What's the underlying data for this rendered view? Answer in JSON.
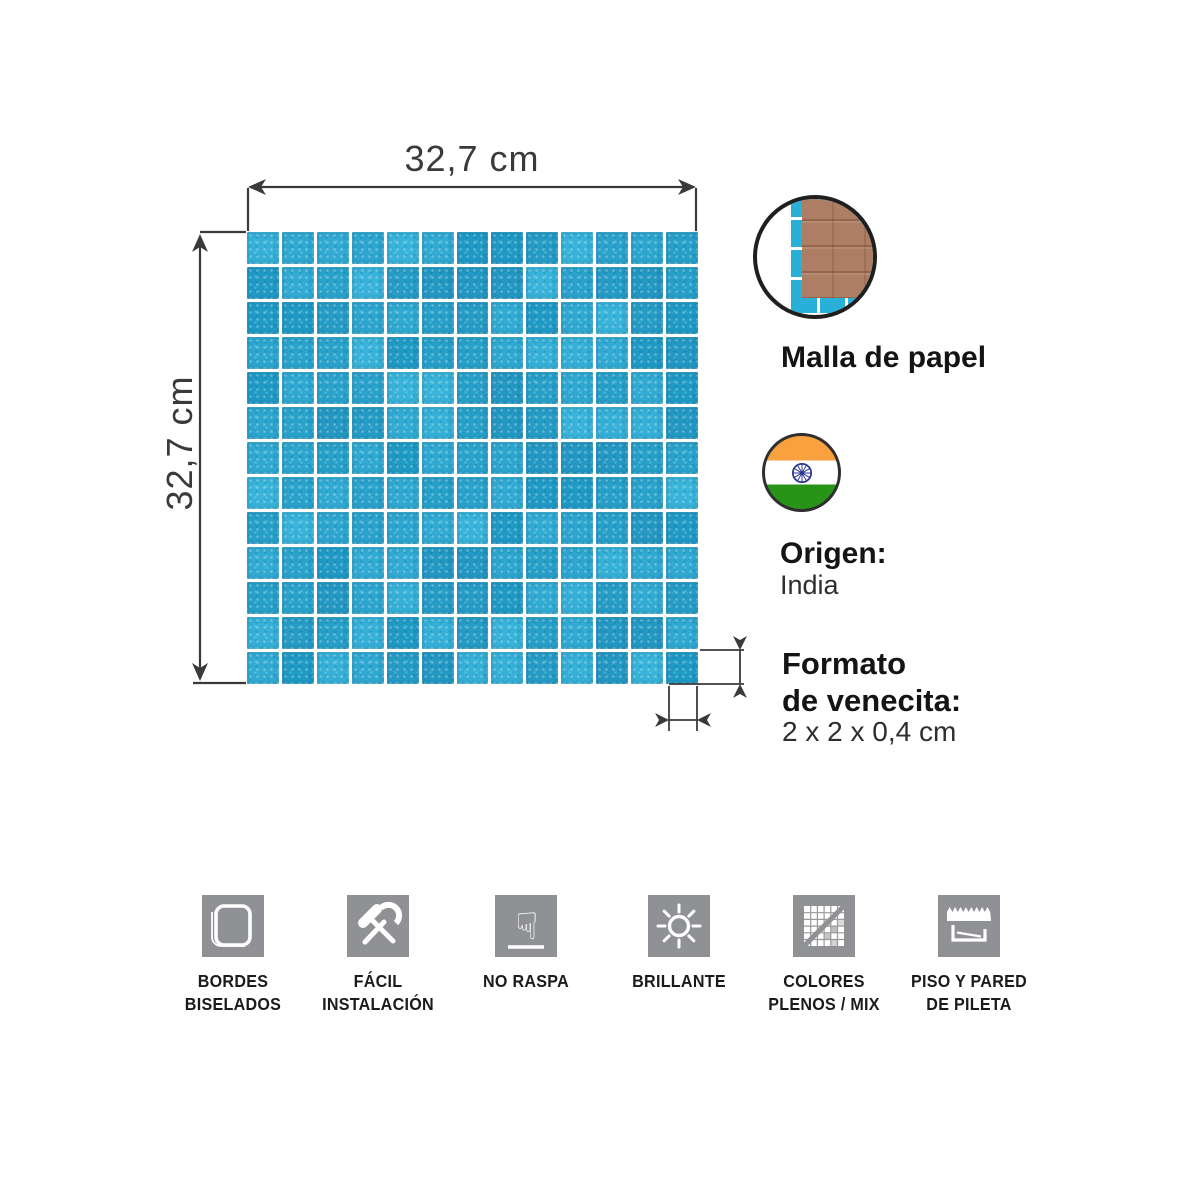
{
  "product_diagram": {
    "width_label": "32,7 cm",
    "height_label": "32,7 cm"
  },
  "callouts": {
    "mesh": {
      "label": "Malla de papel",
      "icon": "paper-mesh-photo"
    },
    "origin": {
      "title": "Origen:",
      "value": "India",
      "icon": "india-flag-icon"
    },
    "format": {
      "line1": "Formato",
      "line2": "de venecita:",
      "value": "2 x 2 x 0,4 cm"
    }
  },
  "mosaic": {
    "rows": 13,
    "cols": 13,
    "seed": 20,
    "grout_color": "#ffffff",
    "palette": [
      "#2fa9d1",
      "#27a0c9",
      "#35b0d7",
      "#2398c3",
      "#2ca6cf",
      "#31abd3",
      "#259cc6",
      "#38b3d9",
      "#2aa3cc",
      "#1f9ac5"
    ]
  },
  "features": [
    {
      "icon": "beveled-edges-icon",
      "lines": [
        "BORDES",
        "BISELADOS"
      ]
    },
    {
      "icon": "tools-icon",
      "lines": [
        "FÁCIL",
        "INSTALACIÓN"
      ]
    },
    {
      "icon": "no-scratch-hand-icon",
      "lines": [
        "NO RASPA"
      ]
    },
    {
      "icon": "sun-icon",
      "lines": [
        "BRILLANTE"
      ]
    },
    {
      "icon": "colors-grid-icon",
      "lines": [
        "COLORES",
        "PLENOS / MIX"
      ]
    },
    {
      "icon": "pool-section-icon",
      "lines": [
        "PISO Y PARED",
        "DE PILETA"
      ]
    }
  ],
  "colors": {
    "tile_blue": "#2aa4cd",
    "grout": "#ffffff",
    "dimension_lines": "#3a3a3a",
    "icon_gray": "#8f9194",
    "text_dark": "#1b1b1b",
    "paper_brown": "#ad7e63",
    "mesh_blue": "#29b0d8",
    "flag_saffron": "#F9A13E",
    "flag_green": "#279317",
    "chakra_navy": "#283593"
  }
}
